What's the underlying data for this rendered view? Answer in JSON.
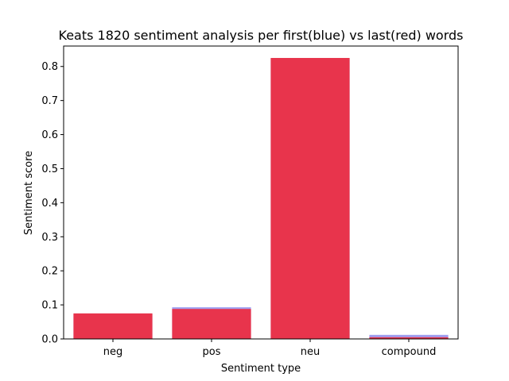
{
  "chart_data": {
    "type": "bar",
    "title": "Keats 1820 sentiment analysis per first(blue) vs last(red) words",
    "xlabel": "Sentiment type",
    "ylabel": "Sentiment score",
    "categories": [
      "neg",
      "pos",
      "neu",
      "compound"
    ],
    "ylim": [
      0,
      0.86
    ],
    "yticks": [
      0.0,
      0.1,
      0.2,
      0.3,
      0.4,
      0.5,
      0.6,
      0.7,
      0.8
    ],
    "grid": false,
    "overlay": true,
    "series": [
      {
        "name": "first",
        "color": "#a0a0f0",
        "values": [
          0.073,
          0.093,
          0.823,
          0.012
        ]
      },
      {
        "name": "last",
        "color": "#e8344c",
        "values": [
          0.075,
          0.088,
          0.825,
          0.005
        ]
      }
    ]
  }
}
